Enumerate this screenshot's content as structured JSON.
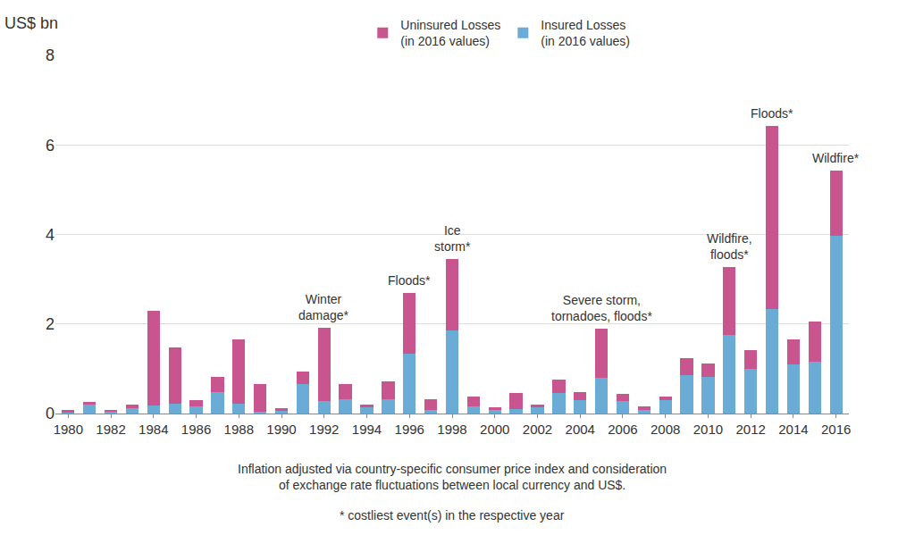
{
  "chart_data": {
    "type": "bar",
    "stacked": true,
    "y_label": "US$ bn",
    "x": [
      1980,
      1981,
      1982,
      1983,
      1984,
      1985,
      1986,
      1987,
      1988,
      1989,
      1990,
      1991,
      1992,
      1993,
      1994,
      1995,
      1996,
      1997,
      1998,
      1999,
      2000,
      2001,
      2002,
      2003,
      2004,
      2005,
      2006,
      2007,
      2008,
      2009,
      2010,
      2011,
      2012,
      2013,
      2014,
      2015,
      2016
    ],
    "series": [
      {
        "name": "Insured Losses\n(in 2016 values)",
        "color": "#6aacd5",
        "values": [
          0.02,
          0.2,
          0.04,
          0.12,
          0.18,
          0.22,
          0.15,
          0.47,
          0.22,
          0.04,
          0.05,
          0.66,
          0.27,
          0.31,
          0.14,
          0.32,
          1.33,
          0.08,
          1.86,
          0.15,
          0.08,
          0.1,
          0.13,
          0.46,
          0.3,
          0.8,
          0.27,
          0.08,
          0.3,
          0.86,
          0.82,
          1.75,
          1.0,
          2.33,
          1.1,
          1.16,
          3.97
        ]
      },
      {
        "name": "Uninsured Losses\n(in 2016 values)",
        "color": "#c9558e",
        "values": [
          0.06,
          0.05,
          0.02,
          0.08,
          2.12,
          1.26,
          0.15,
          0.35,
          1.44,
          0.62,
          0.06,
          0.27,
          1.65,
          0.35,
          0.06,
          0.4,
          1.37,
          0.24,
          1.59,
          0.23,
          0.05,
          0.35,
          0.07,
          0.3,
          0.18,
          1.1,
          0.16,
          0.08,
          0.08,
          0.38,
          0.3,
          1.53,
          0.42,
          4.09,
          0.55,
          0.9,
          1.45
        ]
      }
    ],
    "xlim": [
      1979.4,
      2016.6
    ],
    "xticks": [
      1980,
      1982,
      1984,
      1986,
      1988,
      1990,
      1992,
      1994,
      1996,
      1998,
      2000,
      2002,
      2004,
      2006,
      2008,
      2010,
      2012,
      2014,
      2016
    ],
    "ylim": [
      0,
      8
    ],
    "yticks": [
      0,
      2,
      4,
      6,
      8
    ],
    "grid": true,
    "legend": "top",
    "annotations": [
      {
        "x": 1992,
        "text": "Winter\ndamage*"
      },
      {
        "x": 1996,
        "text": "Floods*"
      },
      {
        "x": 1998,
        "text": "Ice\nstorm*"
      },
      {
        "x": 2005,
        "text": "Severe storm,\ntornadoes, floods*"
      },
      {
        "x": 2011,
        "text": "Wildfire,\nfloods*"
      },
      {
        "x": 2013,
        "text": "Floods*"
      },
      {
        "x": 2016,
        "text": "Wildfire*"
      }
    ],
    "notes": [
      "Inflation adjusted via country-specific consumer price index and consideration\nof exchange rate fluctuations between local currency and US$.",
      "* costliest event(s) in the respective year"
    ]
  }
}
